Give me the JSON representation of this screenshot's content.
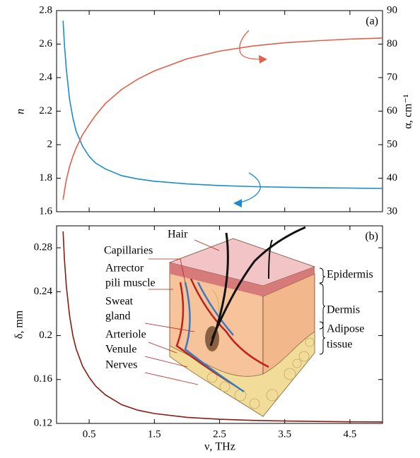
{
  "chart_data": [
    {
      "type": "line",
      "panel_label": "(a)",
      "ylabel": "n",
      "y2label": "α, cm⁻¹",
      "x": [
        0.1,
        0.12,
        0.15,
        0.2,
        0.25,
        0.3,
        0.4,
        0.5,
        0.6,
        0.75,
        1,
        1.25,
        1.5,
        2,
        2.5,
        3,
        3.5,
        4,
        4.5,
        5
      ],
      "xlim": [
        0,
        5
      ],
      "ylim": [
        1.6,
        2.8
      ],
      "yticks": [
        1.6,
        1.8,
        2,
        2.2,
        2.4,
        2.6,
        2.8
      ],
      "y2lim": [
        30,
        90
      ],
      "y2ticks": [
        30,
        40,
        50,
        60,
        70,
        80,
        90
      ],
      "series": [
        {
          "name": "n",
          "color": "#1a8ccf",
          "values": [
            2.74,
            2.6,
            2.45,
            2.27,
            2.16,
            2.08,
            1.99,
            1.93,
            1.89,
            1.855,
            1.815,
            1.795,
            1.782,
            1.766,
            1.756,
            1.75,
            1.746,
            1.743,
            1.741,
            1.739
          ]
        },
        {
          "name": "α",
          "color": "#e0604a",
          "axis": "y2",
          "values": [
            33.6,
            36,
            39.5,
            43.5,
            46.5,
            49,
            53,
            56,
            58.8,
            62.3,
            66.5,
            69.6,
            72,
            75.6,
            77.9,
            79.4,
            80.4,
            81,
            81.5,
            81.8
          ]
        }
      ]
    },
    {
      "type": "line",
      "panel_label": "(b)",
      "ylabel": "δ, mm",
      "xlabel": "ν, THz",
      "x": [
        0.1,
        0.12,
        0.15,
        0.2,
        0.25,
        0.3,
        0.4,
        0.5,
        0.6,
        0.75,
        1,
        1.25,
        1.5,
        2,
        2.5,
        3,
        3.5,
        4,
        4.5,
        5
      ],
      "xlim": [
        0,
        5
      ],
      "xticks": [
        0.5,
        1.5,
        2.5,
        3.5,
        4.5
      ],
      "ylim": [
        0.12,
        0.3
      ],
      "yticks": [
        0.12,
        0.16,
        0.2,
        0.24,
        0.28
      ],
      "series": [
        {
          "name": "δ",
          "color": "#8b1a10",
          "values": [
            0.295,
            0.27,
            0.245,
            0.218,
            0.2,
            0.188,
            0.172,
            0.162,
            0.154,
            0.146,
            0.137,
            0.132,
            0.129,
            0.1255,
            0.1238,
            0.1228,
            0.1222,
            0.1218,
            0.1215,
            0.1213
          ]
        }
      ],
      "annotations": [
        "Hair",
        "Capillaries",
        "Arrector",
        "pili muscle",
        "Sweat",
        "gland",
        "Arteriole",
        "Venule",
        "Nerves",
        "Epidermis",
        "Dermis",
        "Adipose",
        "tissue"
      ]
    }
  ]
}
